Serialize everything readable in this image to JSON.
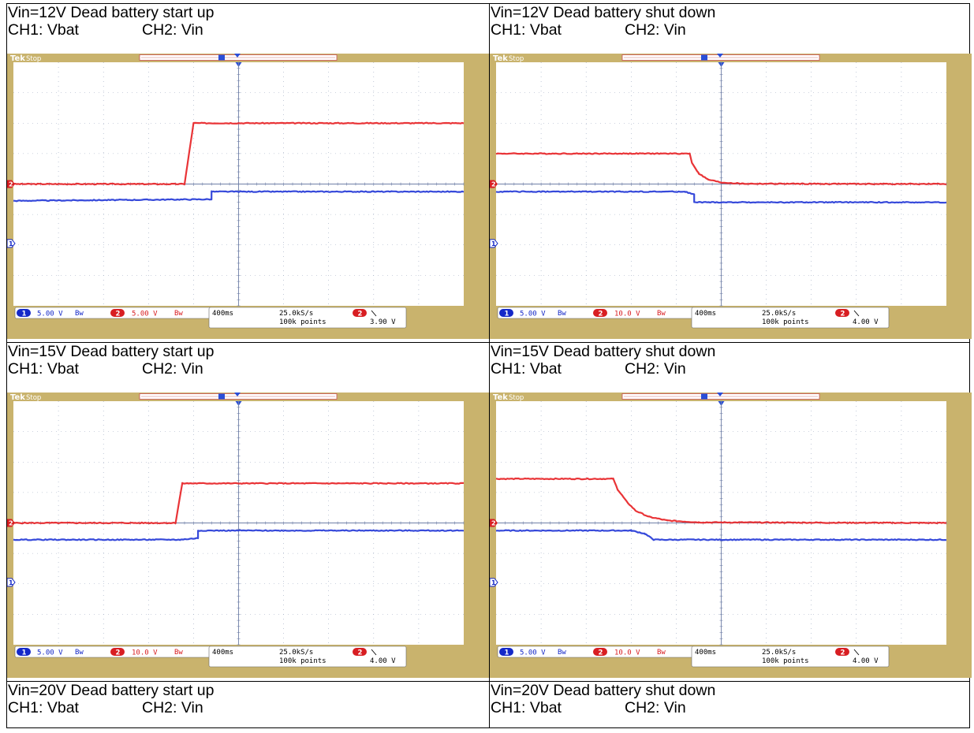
{
  "panels": [
    {
      "title": "Vin=12V Dead battery start up",
      "ch1": "CH1: Vbat",
      "ch2": "CH2: Vin",
      "scope": {
        "brand": "Tek",
        "status": "Stop",
        "ch1_scale": "5.00 V",
        "ch2_scale": "5.00 V",
        "timebase": "400ms",
        "sample_rate": "25.0kS/s",
        "record_length": "100k points",
        "trigger_level": "3.90 V",
        "ch1_marker": "1",
        "ch2_marker": "2"
      },
      "chart_data": {
        "type": "line",
        "xlim": [
          0,
          10
        ],
        "ylim": [
          -4,
          4
        ],
        "series": [
          {
            "name": "CH2",
            "color": "#e8292c",
            "x": [
              0,
              3.8,
              4.0,
              10
            ],
            "y": [
              0.0,
              0.0,
              2.0,
              2.0
            ],
            "noise": 0.03
          },
          {
            "name": "CH1",
            "color": "#2b3fd8",
            "x": [
              0,
              4.4,
              4.4,
              10
            ],
            "y": [
              -0.55,
              -0.5,
              -0.25,
              -0.25
            ],
            "noise": 0.03
          }
        ],
        "ch1_ground": -1.95,
        "ch2_ground": 0.0
      }
    },
    {
      "title": "Vin=12V Dead battery shut down",
      "ch1": "CH1: Vbat",
      "ch2": "CH2: Vin",
      "scope": {
        "brand": "Tek",
        "status": "Stop",
        "ch1_scale": "5.00 V",
        "ch2_scale": "10.0 V",
        "timebase": "400ms",
        "sample_rate": "25.0kS/s",
        "record_length": "100k points",
        "trigger_level": "4.00 V",
        "ch1_marker": "1",
        "ch2_marker": "2"
      },
      "chart_data": {
        "type": "line",
        "xlim": [
          0,
          10
        ],
        "ylim": [
          -4,
          4
        ],
        "series": [
          {
            "name": "CH2",
            "color": "#e8292c",
            "x": [
              0,
              4.3,
              4.35,
              4.5,
              4.7,
              5.0,
              5.5,
              10
            ],
            "y": [
              1.0,
              1.0,
              0.7,
              0.35,
              0.15,
              0.05,
              0.01,
              0.0
            ],
            "noise": 0.03
          },
          {
            "name": "CH1",
            "color": "#2b3fd8",
            "x": [
              0,
              4.2,
              4.4,
              4.4,
              10
            ],
            "y": [
              -0.25,
              -0.25,
              -0.35,
              -0.6,
              -0.6
            ],
            "noise": 0.03
          }
        ],
        "ch1_ground": -1.95,
        "ch2_ground": 0.0
      }
    },
    {
      "title": "Vin=15V Dead battery start up",
      "ch1": "CH1: Vbat",
      "ch2": "CH2: Vin",
      "scope": {
        "brand": "Tek",
        "status": "Stop",
        "ch1_scale": "5.00 V",
        "ch2_scale": "10.0 V",
        "timebase": "400ms",
        "sample_rate": "25.0kS/s",
        "record_length": "100k points",
        "trigger_level": "4.00 V",
        "ch1_marker": "1",
        "ch2_marker": "2"
      },
      "chart_data": {
        "type": "line",
        "xlim": [
          0,
          10
        ],
        "ylim": [
          -4,
          4
        ],
        "series": [
          {
            "name": "CH2",
            "color": "#e8292c",
            "x": [
              0,
              3.6,
              3.75,
              10
            ],
            "y": [
              0.0,
              0.0,
              1.3,
              1.3
            ],
            "noise": 0.03
          },
          {
            "name": "CH1",
            "color": "#2b3fd8",
            "x": [
              0,
              3.7,
              4.1,
              4.1,
              10
            ],
            "y": [
              -0.55,
              -0.55,
              -0.5,
              -0.25,
              -0.25
            ],
            "noise": 0.03
          }
        ],
        "ch1_ground": -1.95,
        "ch2_ground": 0.0
      }
    },
    {
      "title": "Vin=15V Dead battery shut down",
      "ch1": "CH1: Vbat",
      "ch2": "CH2: Vin",
      "scope": {
        "brand": "Tek",
        "status": "Stop",
        "ch1_scale": "5.00 V",
        "ch2_scale": "10.0 V",
        "timebase": "400ms",
        "sample_rate": "25.0kS/s",
        "record_length": "100k points",
        "trigger_level": "4.00 V",
        "ch1_marker": "1",
        "ch2_marker": "2"
      },
      "chart_data": {
        "type": "line",
        "xlim": [
          0,
          10
        ],
        "ylim": [
          -4,
          4
        ],
        "series": [
          {
            "name": "CH2",
            "color": "#e8292c",
            "x": [
              0,
              2.6,
              2.7,
              2.9,
              3.1,
              3.4,
              3.8,
              4.5,
              10
            ],
            "y": [
              1.45,
              1.45,
              1.1,
              0.7,
              0.4,
              0.2,
              0.08,
              0.02,
              0.0
            ],
            "noise": 0.03
          },
          {
            "name": "CH1",
            "color": "#2b3fd8",
            "x": [
              0,
              3.0,
              3.3,
              3.5,
              10
            ],
            "y": [
              -0.25,
              -0.25,
              -0.35,
              -0.55,
              -0.55
            ],
            "noise": 0.03
          }
        ],
        "ch1_ground": -1.95,
        "ch2_ground": 0.0
      }
    },
    {
      "title": "Vin=20V Dead battery start up",
      "ch1": "CH1: Vbat",
      "ch2": "CH2: Vin"
    },
    {
      "title": "Vin=20V Dead battery shut down",
      "ch1": "CH1: Vbat",
      "ch2": "CH2: Vin"
    }
  ],
  "colors": {
    "bezel": "#c9b36d",
    "screen": "#ffffff",
    "grid": "#9aa6bf",
    "center_axis": "#7080a8",
    "ch1": "#2b3fd8",
    "ch2": "#e8292c",
    "ch1_badge": "#1428c8",
    "ch2_badge": "#d81e22"
  }
}
